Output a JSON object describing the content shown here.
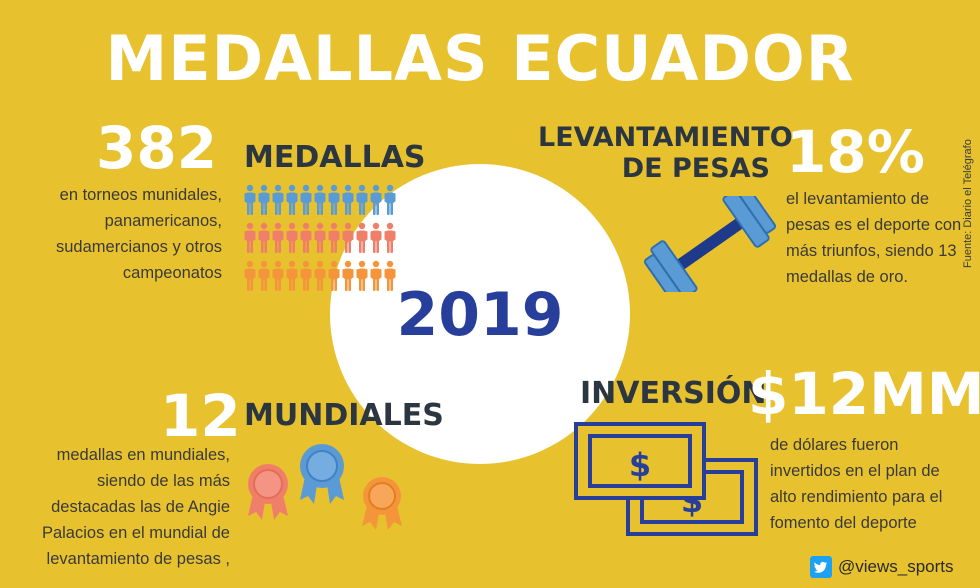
{
  "title": "MEDALLAS ECUADOR",
  "source": "Fuente: Diario el Telégrafo",
  "year": "2019",
  "medals": {
    "number": "382",
    "heading": "MEDALLAS",
    "lines": [
      "en torneos munidales,",
      "panamericanos,",
      "sudamercianos y otros",
      "campeonatos"
    ]
  },
  "weightlifting": {
    "heading_line1": "LEVANTAMIENTO",
    "heading_line2": "DE PESAS",
    "percent": "18%",
    "lines": [
      "el levantamiento de",
      "pesas es el deporte con",
      "más triunfos, siendo 13",
      "medallas de oro."
    ]
  },
  "worlds": {
    "number": "12",
    "heading": "MUNDIALES",
    "lines": [
      "medallas en mundiales,",
      "siendo de las más",
      "destacadas las de Angie",
      "Palacios en el mundial de",
      "levantamiento de pesas ,"
    ]
  },
  "investment": {
    "heading": "INVERSIÓN",
    "amount": "$12MM",
    "lines": [
      "de dólares fueron",
      "invertidos en el plan de",
      "alto rendimiento para el",
      "fomento del deporte"
    ]
  },
  "social": {
    "handle": "@views_sports"
  },
  "colors": {
    "background": "#E8C22E",
    "blue": "#5B9BD5",
    "salmon": "#F07F6A",
    "orange": "#F5953B",
    "navy": "#283E9B"
  }
}
